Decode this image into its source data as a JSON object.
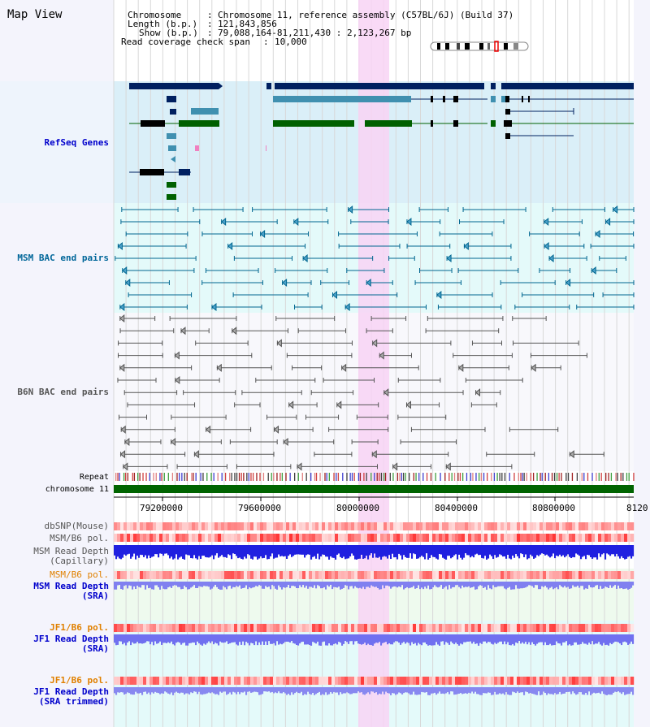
{
  "title": "Map View",
  "header": {
    "chromosome_label": "Chromosome",
    "chromosome_value": "Chromosome 11, reference assembly (C57BL/6J) (Build 37)",
    "length_label": "Length (b.p.)",
    "length_value": "121,843,856",
    "show_label": "Show (b.p.)",
    "show_value": "79,088,164-81,211,430 : 2,123,267 bp",
    "coverage_label": "Read coverage check span",
    "coverage_value": "10,000"
  },
  "tracks": {
    "refseq": "RefSeq Genes",
    "msm_bac": "MSM BAC end pairs",
    "b6n_bac": "B6N BAC end pairs",
    "repeat": "Repeat",
    "chromosome": "chromosome 11",
    "dbsnp": "dbSNP(Mouse)",
    "msm_b6_pol_1": "MSM/B6 pol.",
    "msm_read_depth_cap_1": "MSM Read Depth",
    "msm_read_depth_cap_2": "(Capillary)",
    "msm_b6_pol_2": "MSM/B6 pol.",
    "msm_read_depth_sra_1": "MSM Read Depth",
    "msm_read_depth_sra_2": "(SRA)",
    "jf1_b6_pol_1": "JF1/B6 pol.",
    "jf1_read_depth_sra_1": "JF1 Read Depth",
    "jf1_read_depth_sra_2": "(SRA)",
    "jf1_b6_pol_2": "JF1/B6 pol.",
    "jf1_read_depth_trim_1": "JF1 Read Depth",
    "jf1_read_depth_trim_2": "(SRA trimmed)"
  },
  "axis_ticks": [
    "79200000",
    "79600000",
    "80000000",
    "80400000",
    "80800000",
    "8120"
  ],
  "colors": {
    "refseq_label": "#0000cc",
    "msm_label": "#006699",
    "b6n_label": "#555555",
    "msm_sra_label": "#0000cc",
    "orange_label": "#e08000",
    "highlight": "#f8d8f8"
  }
}
